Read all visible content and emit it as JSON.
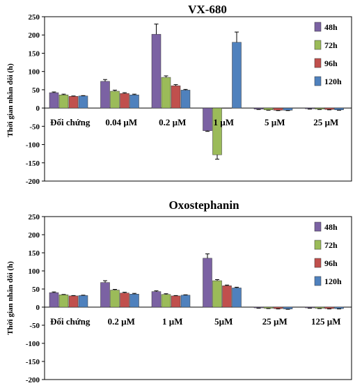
{
  "chart_data": [
    {
      "type": "bar",
      "title": "VX-680",
      "xlabel": "",
      "ylabel": "Thời gian nhân đôi (h)",
      "ylim": [
        -200,
        250
      ],
      "yticks": [
        250,
        200,
        150,
        100,
        50,
        0,
        -50,
        -100,
        -150,
        -200
      ],
      "categories": [
        "Đối chứng",
        "0.04 µM",
        "0.2 µM",
        "1 µM",
        "5 µM",
        "25 µM"
      ],
      "series": [
        {
          "name": "48h",
          "values": [
            42,
            73,
            202,
            -62,
            -3,
            -2
          ],
          "errors": [
            2,
            5,
            28,
            2,
            1,
            1
          ]
        },
        {
          "name": "72h",
          "values": [
            36,
            46,
            84,
            -128,
            -5,
            -3
          ],
          "errors": [
            2,
            3,
            4,
            12,
            1,
            1
          ]
        },
        {
          "name": "96h",
          "values": [
            32,
            40,
            61,
            0,
            -6,
            -4
          ],
          "errors": [
            1,
            2,
            3,
            0,
            1,
            1
          ]
        },
        {
          "name": "120h",
          "values": [
            33,
            36,
            49,
            180,
            -6,
            -5
          ],
          "errors": [
            1,
            2,
            2,
            28,
            1,
            1
          ]
        }
      ],
      "legend_position": "top-right",
      "colors": [
        "#7b62a3",
        "#9bbb59",
        "#c0504d",
        "#4f81bd"
      ]
    },
    {
      "type": "bar",
      "title": "Oxostephanin",
      "xlabel": "",
      "ylabel": "Thời gian nhân đôi (h)",
      "ylim": [
        -200,
        250
      ],
      "yticks": [
        250,
        200,
        150,
        100,
        50,
        0,
        -50,
        -100,
        -150,
        -200
      ],
      "categories": [
        "Đối chứng",
        "0.2 µM",
        "1 µM",
        "5µM",
        "25 µM",
        "125 µM"
      ],
      "series": [
        {
          "name": "48h",
          "values": [
            40,
            68,
            43,
            135,
            -2,
            -2
          ],
          "errors": [
            2,
            5,
            2,
            12,
            1,
            1
          ]
        },
        {
          "name": "72h",
          "values": [
            34,
            47,
            35,
            73,
            -3,
            -3
          ],
          "errors": [
            1,
            2,
            2,
            3,
            1,
            1
          ]
        },
        {
          "name": "96h",
          "values": [
            31,
            39,
            31,
            59,
            -4,
            -4
          ],
          "errors": [
            1,
            2,
            1,
            2,
            1,
            1
          ]
        },
        {
          "name": "120h",
          "values": [
            32,
            36,
            33,
            53,
            -5,
            -4
          ],
          "errors": [
            1,
            2,
            1,
            2,
            1,
            1
          ]
        }
      ],
      "legend_position": "top-right",
      "colors": [
        "#7b62a3",
        "#9bbb59",
        "#c0504d",
        "#4f81bd"
      ]
    }
  ]
}
